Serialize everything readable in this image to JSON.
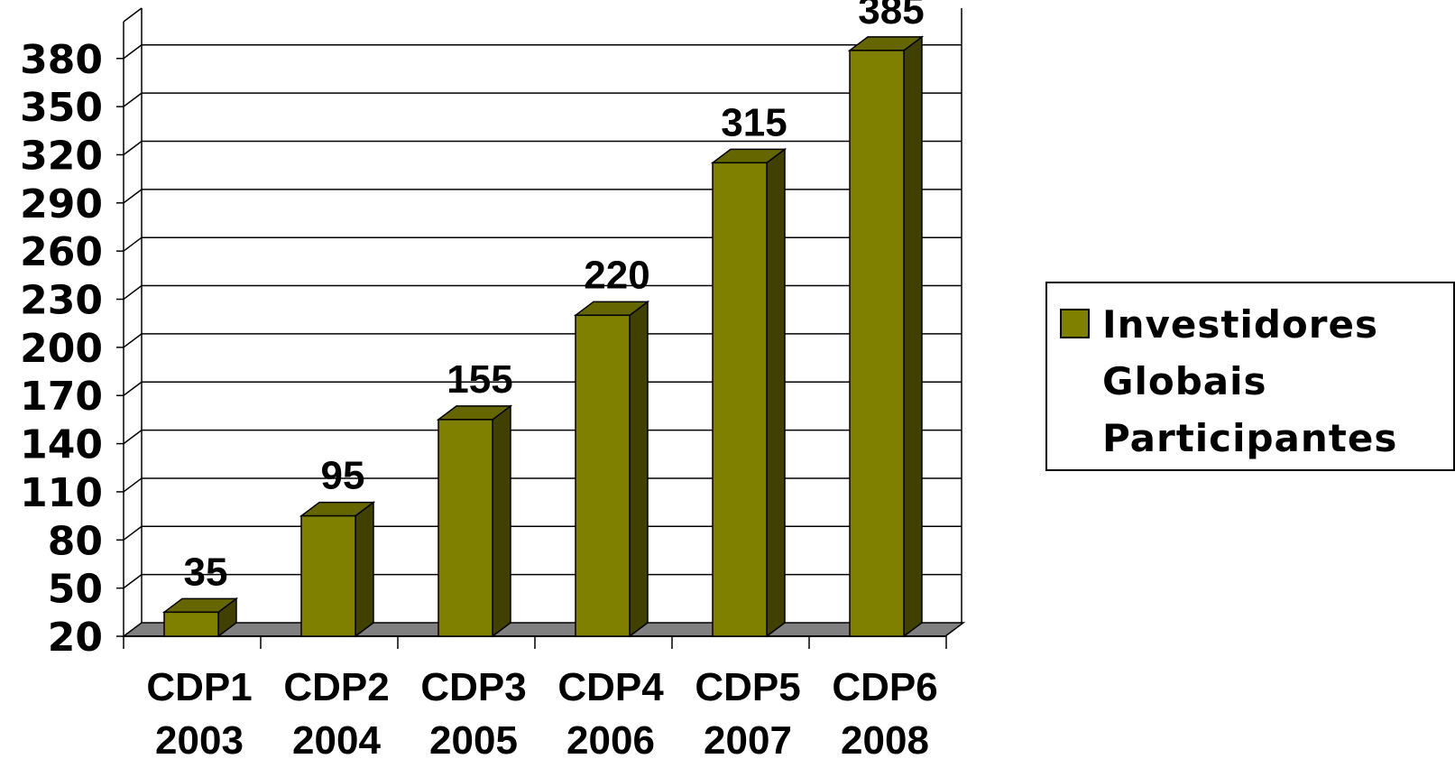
{
  "chart_data": {
    "type": "bar",
    "categories": [
      [
        "CDP1",
        "2003"
      ],
      [
        "CDP2",
        "2004"
      ],
      [
        "CDP3",
        "2005"
      ],
      [
        "CDP4",
        "2006"
      ],
      [
        "CDP5",
        "2007"
      ],
      [
        "CDP6",
        "2008"
      ]
    ],
    "series": [
      {
        "name_lines": [
          "Investidores",
          "Globais",
          "Participantes"
        ],
        "values": [
          35,
          95,
          155,
          220,
          315,
          385
        ],
        "color": "#808000"
      }
    ],
    "data_labels": [
      "35",
      "95",
      "155",
      "220",
      "315",
      "385"
    ],
    "yticks": [
      20,
      50,
      80,
      110,
      140,
      170,
      200,
      230,
      260,
      290,
      320,
      350,
      380
    ],
    "ylim": [
      20,
      390
    ],
    "grid": true,
    "legend_position": "right",
    "colors": {
      "bar_front": "#808000",
      "bar_top": "#666600",
      "bar_side": "#404000",
      "floor": "#808080",
      "grid": "#000000"
    }
  }
}
